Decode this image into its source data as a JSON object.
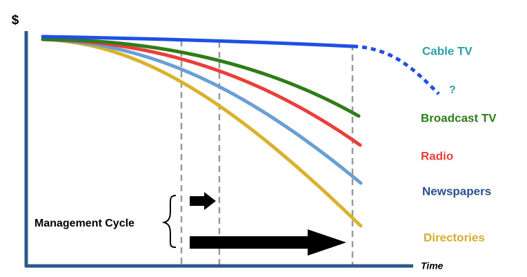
{
  "axes": {
    "y_label": "$",
    "x_label": "Time"
  },
  "series": [
    {
      "label": "Cable TV",
      "color": "#2aa0a8",
      "line_color": "#1f4fe6"
    },
    {
      "label": "Broadcast TV",
      "color": "#2e7d1a",
      "line_color": "#2e7d1a"
    },
    {
      "label": "Radio",
      "color": "#e8403a",
      "line_color": "#e8403a"
    },
    {
      "label": "Newspapers",
      "color": "#2b4f8c",
      "line_color": "#6a9fd4"
    },
    {
      "label": "Directories",
      "color": "#d4ac2b",
      "line_color": "#d9b22e"
    }
  ],
  "question_mark": "?",
  "annotation": "Management Cycle"
}
